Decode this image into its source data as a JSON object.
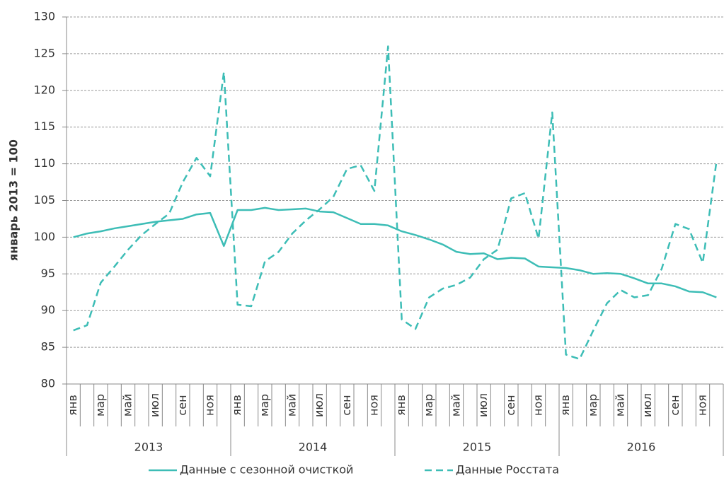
{
  "chart_data": {
    "type": "line",
    "y_label": "январь 2013 = 100",
    "categories": [
      "янв",
      null,
      "мар",
      null,
      "май",
      null,
      "июл",
      null,
      "сен",
      null,
      "ноя",
      null,
      "янв",
      null,
      "мар",
      null,
      "май",
      null,
      "июл",
      null,
      "сен",
      null,
      "ноя",
      null,
      "янв",
      null,
      "мар",
      null,
      "май",
      null,
      "июл",
      null,
      "сен",
      null,
      "ноя",
      null,
      "янв",
      null,
      "мар",
      null,
      "май",
      null,
      "июл",
      null,
      "сен",
      null,
      "ноя",
      null
    ],
    "years": [
      "2013",
      "2014",
      "2015",
      "2016"
    ],
    "ylim": [
      80,
      130
    ],
    "yticks": [
      80,
      85,
      90,
      95,
      100,
      105,
      110,
      115,
      120,
      125,
      130
    ],
    "grid": true,
    "legend": "bottom",
    "series": [
      {
        "name": "Данные с сезонной очисткой",
        "color": "#3dbdb6",
        "line_style": "solid",
        "values": [
          100,
          100.5,
          100.8,
          101.2,
          101.5,
          101.8,
          102.1,
          102.3,
          102.5,
          103.1,
          103.3,
          98.8,
          103.7,
          103.7,
          104.0,
          103.7,
          103.8,
          103.9,
          103.5,
          103.4,
          102.6,
          101.8,
          101.8,
          101.6,
          100.8,
          100.3,
          99.7,
          99.0,
          98.0,
          97.7,
          97.8,
          97.0,
          97.2,
          97.1,
          96.0,
          95.9,
          95.8,
          95.5,
          95.0,
          95.1,
          95.0,
          94.4,
          93.7,
          93.7,
          93.3,
          92.6,
          92.5,
          91.8
        ]
      },
      {
        "name": "Данные Росстата",
        "color": "#3dbdb6",
        "line_style": "dashed",
        "values": [
          87.3,
          88.0,
          93.8,
          96.0,
          98.3,
          100.3,
          101.8,
          103.2,
          107.5,
          110.8,
          108.3,
          122.5,
          90.8,
          90.6,
          96.7,
          98.0,
          100.5,
          102.3,
          103.8,
          105.5,
          109.3,
          109.8,
          106.3,
          126.0,
          88.8,
          87.5,
          91.8,
          93.0,
          93.5,
          94.5,
          97.0,
          98.3,
          105.3,
          106.0,
          99.8,
          117.0,
          84.0,
          83.4,
          87.3,
          91.0,
          92.8,
          91.8,
          92.1,
          95.7,
          101.8,
          101.1,
          96.5,
          110.3
        ]
      }
    ]
  }
}
